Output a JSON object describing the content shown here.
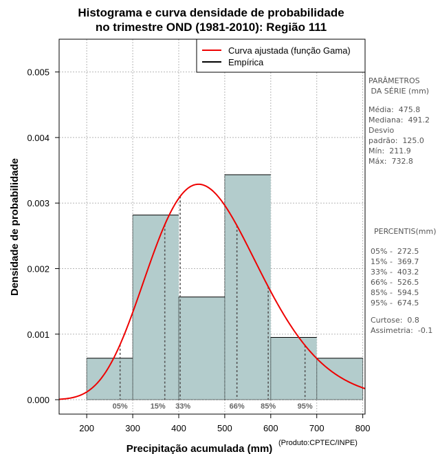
{
  "chart_data": {
    "type": "histogram",
    "title_lines": [
      "Histograma e curva densidade de probabilidade",
      "no trimestre OND (1981-2010): Região 111"
    ],
    "xlabel": "Precipitação acumulada (mm)",
    "ylabel": "Densidade de probabilidade",
    "xlim": [
      140,
      805
    ],
    "ylim": [
      -0.00022,
      0.0055
    ],
    "x_ticks": [
      200,
      300,
      400,
      500,
      600,
      700,
      800
    ],
    "y_ticks": [
      0.0,
      0.001,
      0.002,
      0.003,
      0.004,
      0.005
    ],
    "y_tick_labels": [
      "0.000",
      "0.001",
      "0.002",
      "0.003",
      "0.004",
      "0.005"
    ],
    "grid": true,
    "bars": [
      {
        "x0": 200,
        "x1": 300,
        "density": 0.000633
      },
      {
        "x0": 300,
        "x1": 400,
        "density": 0.002817
      },
      {
        "x0": 400,
        "x1": 500,
        "density": 0.001567
      },
      {
        "x0": 500,
        "x1": 600,
        "density": 0.003433
      },
      {
        "x0": 600,
        "x1": 700,
        "density": 0.00095
      },
      {
        "x0": 700,
        "x1": 800,
        "density": 0.000633
      }
    ],
    "bar_color": "#b3cccc",
    "gamma_fit": {
      "mean": 475.8,
      "sd": 125.0,
      "color": "#ee0000"
    },
    "percentile_lines": [
      {
        "label": "05%",
        "value": 272.5
      },
      {
        "label": "15%",
        "value": 369.7
      },
      {
        "label": "33%",
        "value": 403.2
      },
      {
        "label": "66%",
        "value": 526.5
      },
      {
        "label": "85%",
        "value": 594.5
      },
      {
        "label": "95%",
        "value": 674.5
      }
    ],
    "legend": [
      {
        "label": "Curva ajustada (função Gama)",
        "color": "#ee0000"
      },
      {
        "label": "Empírica",
        "color": "#000000"
      }
    ]
  },
  "side_panel": {
    "params_heading": "PARÂMETROS\n DA SÉRIE (mm)",
    "params_body": "Média:  475.8\nMediana:  491.2\nDesvio\npadrão:  125.0\nMín:  211.9\nMáx:  732.8",
    "percentis_heading": "PERCENTIS(mm)",
    "percentis_body": "05% -  272.5\n15% -  369.7\n33% -  403.2\n66% -  526.5\n85% -  594.5\n95% -  674.5",
    "stats_body": "Curtose:  0.8\nAssimetria:  -0.1"
  },
  "credit": "(Produto:CPTEC/INPE)"
}
